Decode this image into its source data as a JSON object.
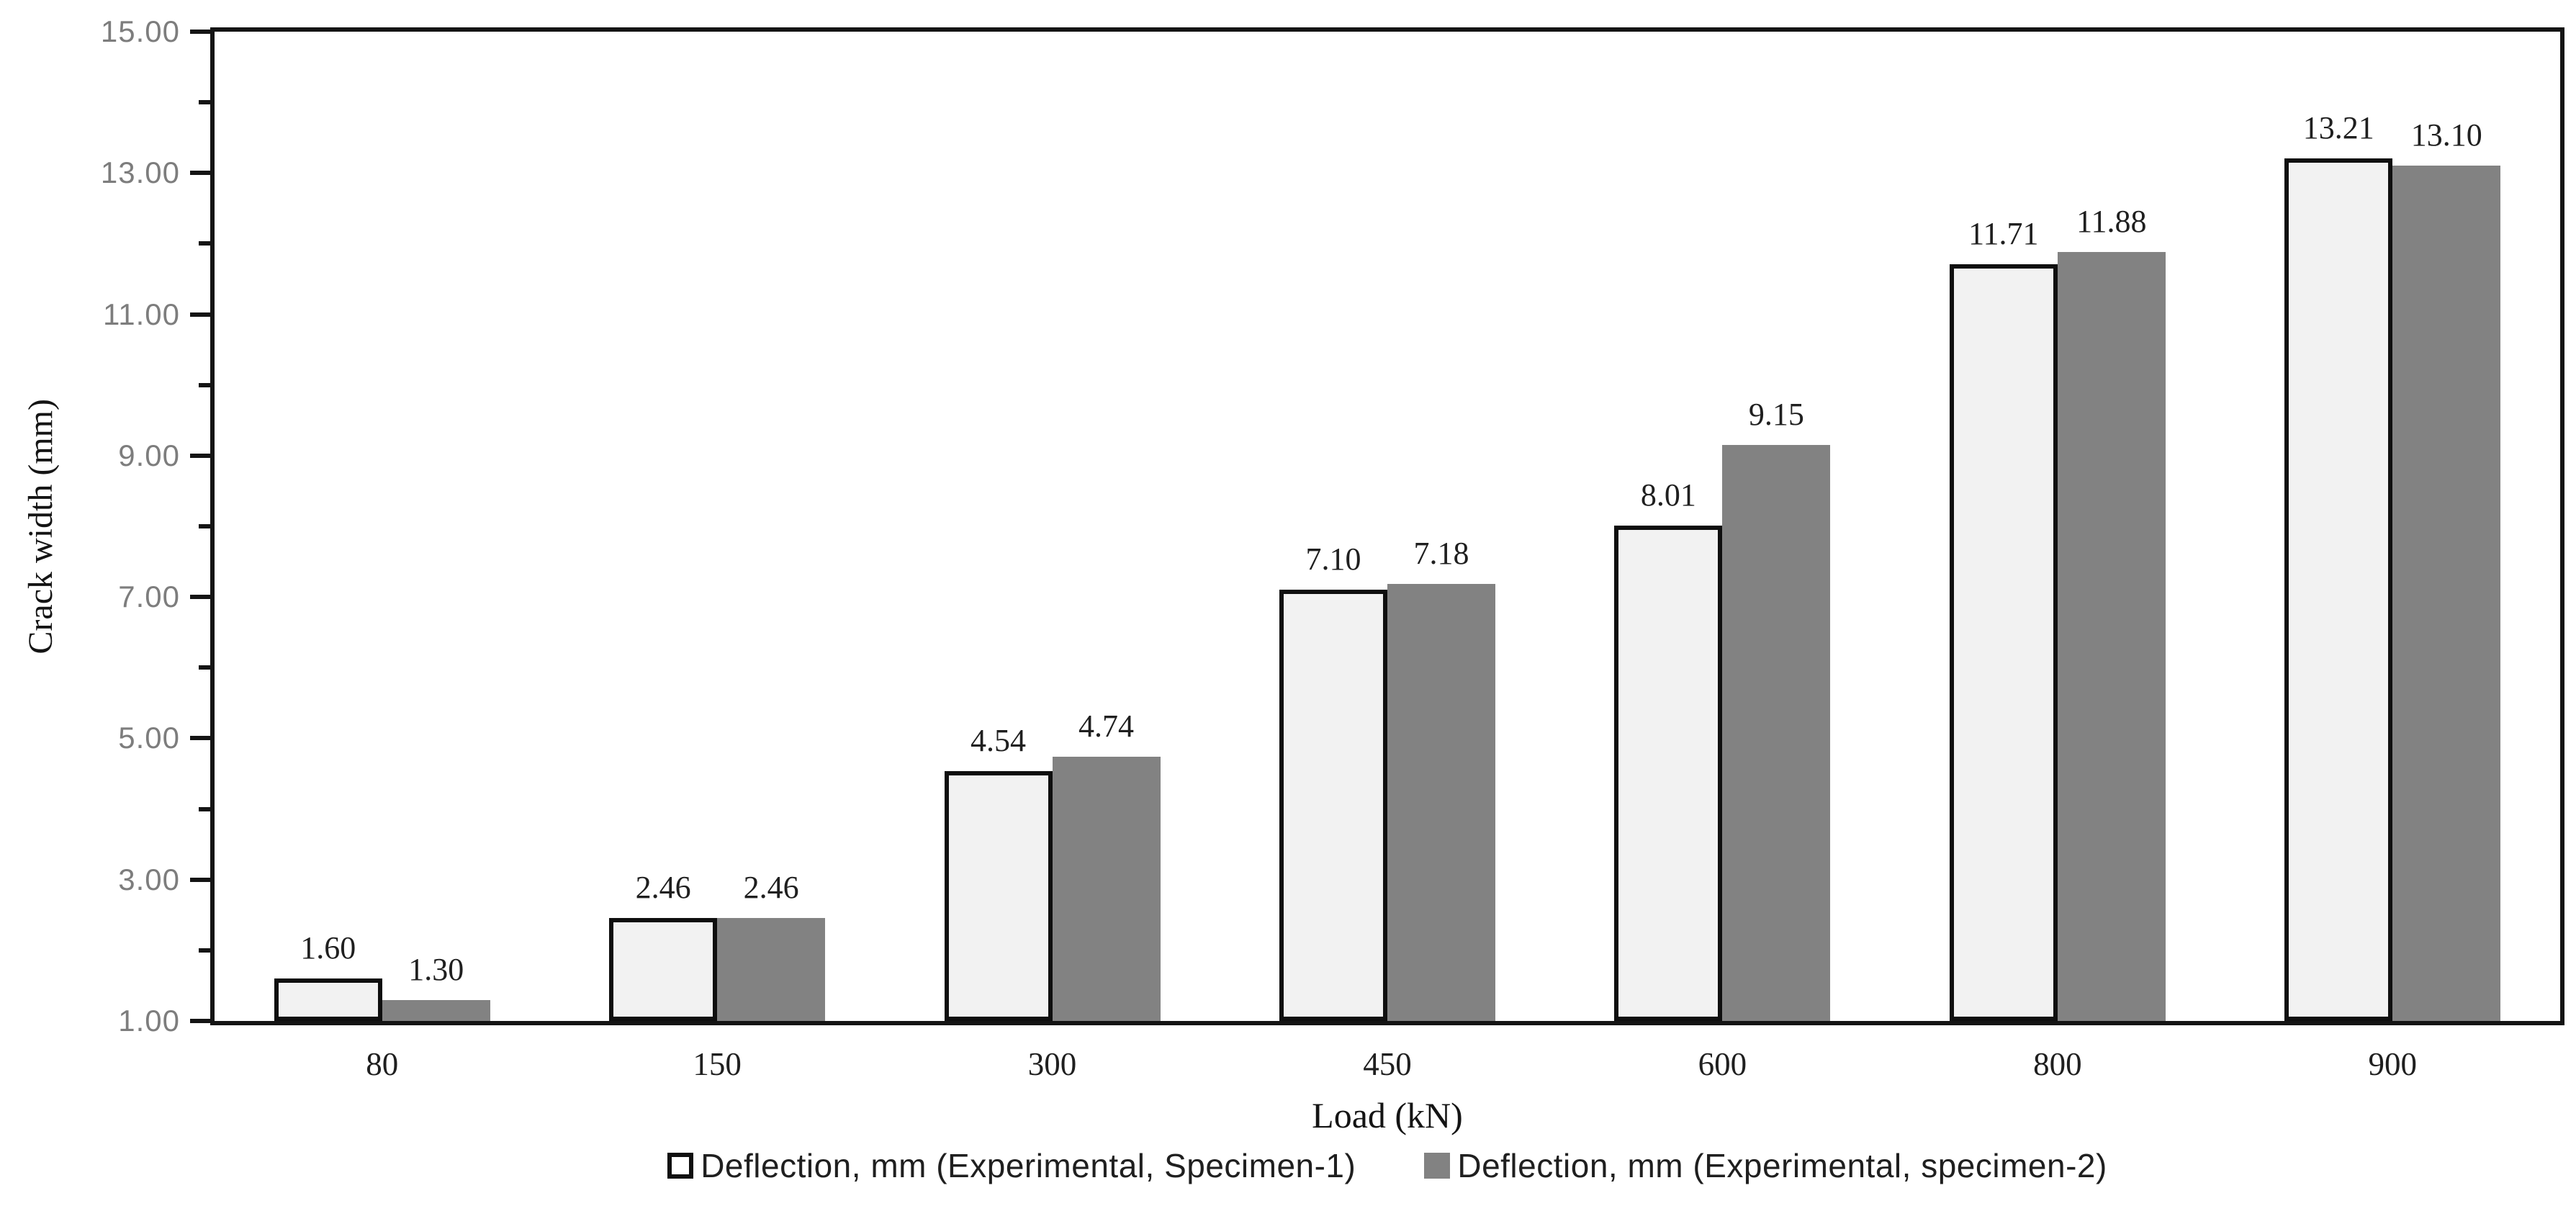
{
  "chart_data": {
    "type": "bar",
    "title": "",
    "xlabel": "Load (kN)",
    "ylabel": "Crack width (mm)",
    "categories": [
      "80",
      "150",
      "300",
      "450",
      "600",
      "800",
      "900"
    ],
    "series": [
      {
        "name": "Deflection, mm (Experimental, Specimen-1)",
        "values": [
          1.6,
          2.46,
          4.54,
          7.1,
          8.01,
          11.71,
          13.21
        ],
        "labels": [
          "1.60",
          "2.46",
          "4.54",
          "7.10",
          "8.01",
          "11.71",
          "13.21"
        ],
        "fill": "#f2f2f2",
        "border": "#0f0f0f"
      },
      {
        "name": "Deflection, mm (Experimental, specimen-2)",
        "values": [
          1.3,
          2.46,
          4.74,
          7.18,
          9.15,
          11.88,
          13.1
        ],
        "labels": [
          "1.30",
          "2.46",
          "4.74",
          "7.18",
          "9.15",
          "11.88",
          "13.10"
        ],
        "fill": "#828282",
        "border": "none"
      }
    ],
    "y_axis": {
      "min": 1,
      "max": 15,
      "major_tick_values": [
        1,
        3,
        5,
        7,
        9,
        11,
        13,
        15
      ],
      "tick_labels": [
        "1.00",
        "3.00",
        "5.00",
        "7.00",
        "9.00",
        "11.00",
        "13.00",
        "15.00"
      ],
      "minor_tick_values": [
        2,
        4,
        6,
        8,
        10,
        12,
        14
      ]
    },
    "legend_position": "bottom",
    "grid": false,
    "data_labels_shown": true,
    "colors": {
      "axis_line": "#141414",
      "ytick_label": "#7d7d7d",
      "text": "#1f1f1f",
      "specimen1_fill": "#f2f2f2",
      "specimen2_fill": "#828282"
    }
  }
}
